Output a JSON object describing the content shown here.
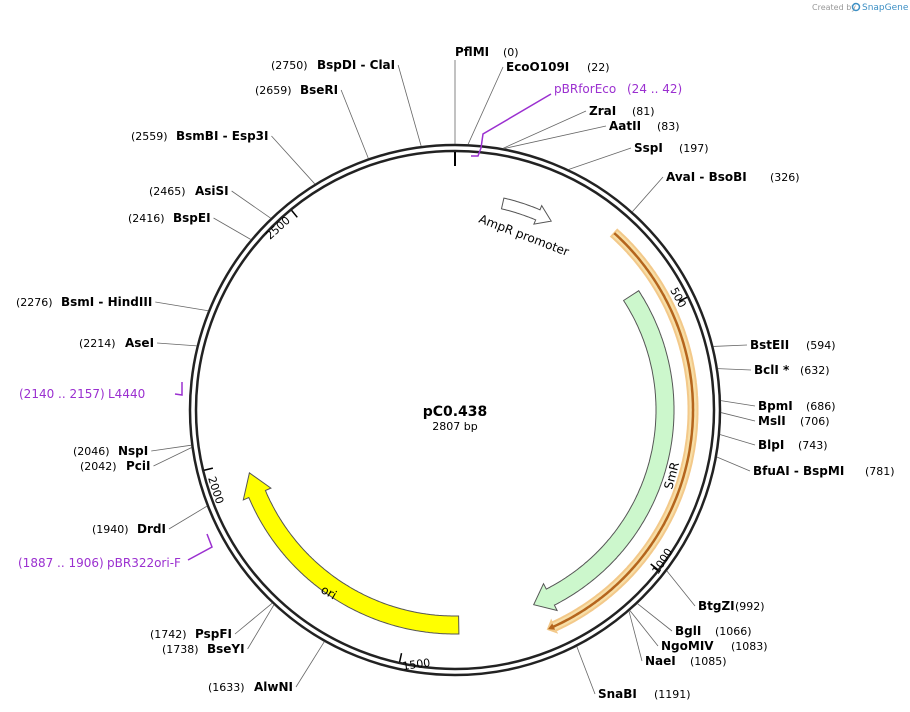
{
  "header": {
    "created_by": "Created by",
    "brand": "SnapGene"
  },
  "plasmid": {
    "name": "pC0.438",
    "size": "2807 bp"
  },
  "ruler": [
    "500",
    "1000",
    "1500",
    "2000",
    "2500"
  ],
  "features": [
    {
      "label": "AmpR promoter"
    },
    {
      "label": "SmR"
    },
    {
      "label": "ori"
    }
  ],
  "primers": [
    {
      "name": "pBRforEco",
      "range": "(24 .. 42)"
    },
    {
      "name": "L4440",
      "range": "(2140 .. 2157)"
    },
    {
      "name": "pBR322ori-F",
      "range": "(1887 .. 1906)"
    }
  ],
  "sites": [
    {
      "name": "PflMI",
      "position": "(0)"
    },
    {
      "name": "EcoO109I",
      "position": "(22)"
    },
    {
      "name": "ZraI",
      "position": "(81)"
    },
    {
      "name": "AatII",
      "position": "(83)"
    },
    {
      "name": "SspI",
      "position": "(197)"
    },
    {
      "name": "AvaI  -  BsoBI",
      "position": "(326)"
    },
    {
      "name": "BstEII",
      "position": "(594)"
    },
    {
      "name": "BclI *",
      "position": "(632)"
    },
    {
      "name": "BpmI",
      "position": "(686)"
    },
    {
      "name": "MslI",
      "position": "(706)"
    },
    {
      "name": "BlpI",
      "position": "(743)"
    },
    {
      "name": "BfuAI  -  BspMI",
      "position": "(781)"
    },
    {
      "name": "BtgZI",
      "position": "(992)"
    },
    {
      "name": "BglI",
      "position": "(1066)"
    },
    {
      "name": "NgoMIV",
      "position": "(1083)"
    },
    {
      "name": "NaeI",
      "position": "(1085)"
    },
    {
      "name": "SnaBI",
      "position": "(1191)"
    },
    {
      "name": "AlwNI",
      "position": "(1633)"
    },
    {
      "name": "BseYI",
      "position": "(1738)"
    },
    {
      "name": "PspFI",
      "position": "(1742)"
    },
    {
      "name": "DrdI",
      "position": "(1940)"
    },
    {
      "name": "PciI",
      "position": "(2042)"
    },
    {
      "name": "NspI",
      "position": "(2046)"
    },
    {
      "name": "AseI",
      "position": "(2214)"
    },
    {
      "name": "BsmI  -  HindIII",
      "position": "(2276)"
    },
    {
      "name": "BspEI",
      "position": "(2416)"
    },
    {
      "name": "AsiSI",
      "position": "(2465)"
    },
    {
      "name": "BsmBI  -  Esp3I",
      "position": "(2559)"
    },
    {
      "name": "BseRI",
      "position": "(2659)"
    },
    {
      "name": "BspDI  -  ClaI",
      "position": "(2750)"
    }
  ]
}
